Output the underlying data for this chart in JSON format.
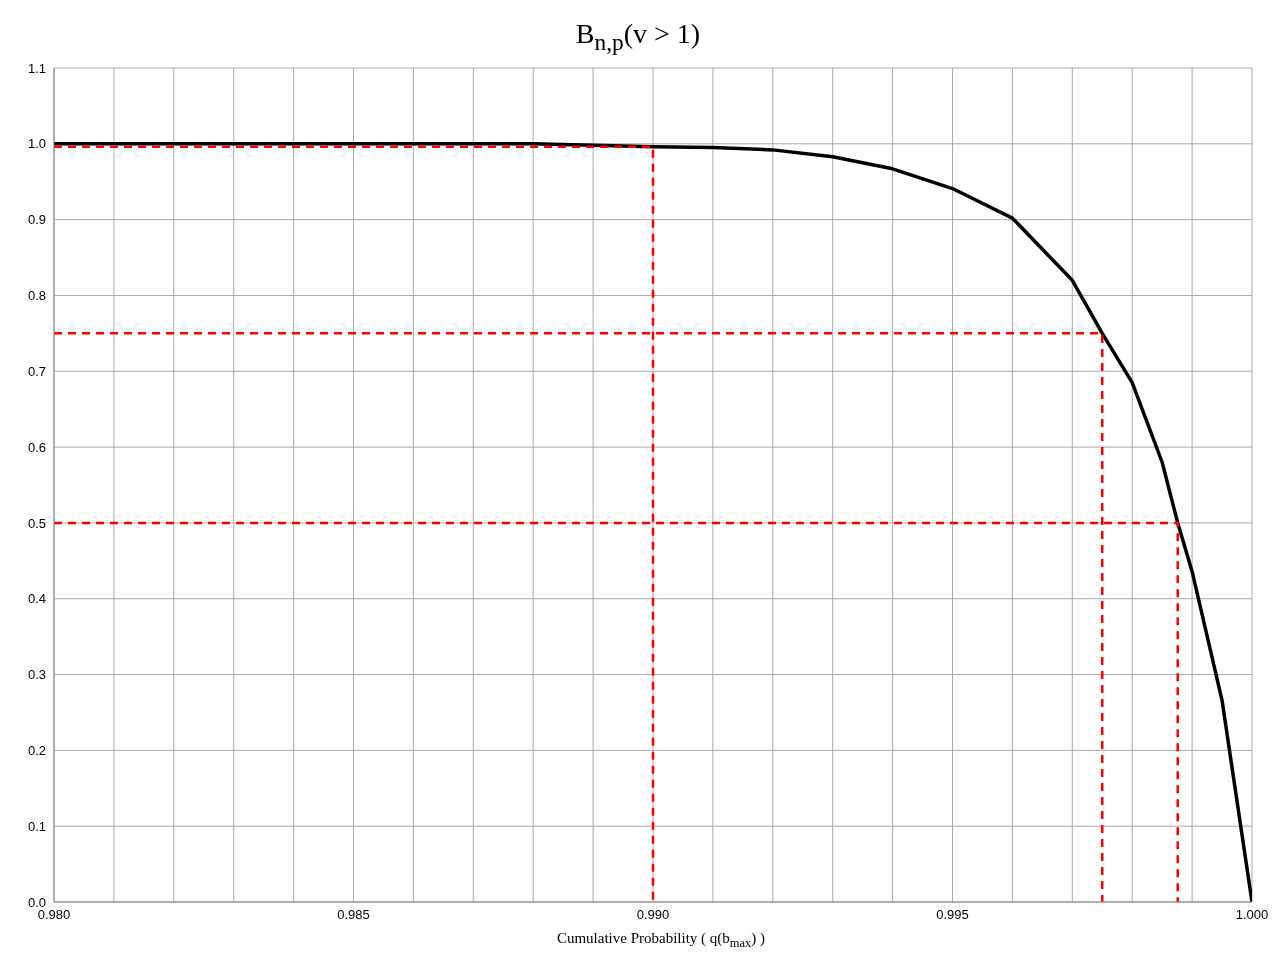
{
  "chart_data": {
    "type": "line",
    "title": "B$_{n,p}$(v > 1)",
    "xlabel": "Cumulative Probability ( q(b$_{max}$) )",
    "xlim": [
      0.98,
      1.0
    ],
    "xticks": [
      {
        "value": 0.98,
        "label": "0.980"
      },
      {
        "value": 0.981,
        "label": null
      },
      {
        "value": 0.982,
        "label": null
      },
      {
        "value": 0.983,
        "label": null
      },
      {
        "value": 0.984,
        "label": null
      },
      {
        "value": 0.985,
        "label": "0.985"
      },
      {
        "value": 0.986,
        "label": null
      },
      {
        "value": 0.987,
        "label": null
      },
      {
        "value": 0.988,
        "label": null
      },
      {
        "value": 0.989,
        "label": null
      },
      {
        "value": 0.99,
        "label": "0.990"
      },
      {
        "value": 0.991,
        "label": null
      },
      {
        "value": 0.992,
        "label": null
      },
      {
        "value": 0.993,
        "label": null
      },
      {
        "value": 0.994,
        "label": null
      },
      {
        "value": 0.995,
        "label": "0.995"
      },
      {
        "value": 0.996,
        "label": null
      },
      {
        "value": 0.997,
        "label": null
      },
      {
        "value": 0.998,
        "label": null
      },
      {
        "value": 0.999,
        "label": null
      },
      {
        "value": 1.0,
        "label": "1.000"
      }
    ],
    "ylim": [
      0,
      1.1
    ],
    "yticks": [
      {
        "value": 0,
        "label": "0.0"
      },
      {
        "value": 0.1,
        "label": "0.1"
      },
      {
        "value": 0.2,
        "label": "0.2"
      },
      {
        "value": 0.3,
        "label": "0.3"
      },
      {
        "value": 0.4,
        "label": "0.4"
      },
      {
        "value": 0.5,
        "label": "0.5"
      },
      {
        "value": 0.6,
        "label": "0.6"
      },
      {
        "value": 0.7,
        "label": "0.7"
      },
      {
        "value": 0.8,
        "label": "0.8"
      },
      {
        "value": 0.9,
        "label": "0.9"
      },
      {
        "value": 1.0,
        "label": "1.0"
      },
      {
        "value": 1.1,
        "label": "1.1"
      }
    ],
    "grid": true,
    "marker": "none",
    "series": [
      {
        "color": "#000000",
        "line_style": "solid",
        "x": [
          0.98,
          0.985,
          0.988,
          0.99,
          0.991,
          0.992,
          0.993,
          0.994,
          0.995,
          0.996,
          0.997,
          0.9975,
          0.998,
          0.9985,
          0.99876,
          0.999,
          0.9995,
          1.0
        ],
        "values": [
          1.0,
          1.0,
          1.0,
          0.996,
          0.995,
          0.992,
          0.983,
          0.967,
          0.941,
          0.902,
          0.82,
          0.75,
          0.685,
          0.58,
          0.5,
          0.436,
          0.266,
          0
        ]
      },
      {
        "color": "#ff0000",
        "line_style": "dashed",
        "x": [
          0.98,
          0.99,
          0.99
        ],
        "values": [
          0.996,
          0.996,
          0
        ]
      },
      {
        "color": "#ff0000",
        "line_style": "dashed",
        "x": [
          0.98,
          0.9975,
          0.9975
        ],
        "values": [
          0.75,
          0.75,
          0
        ]
      },
      {
        "color": "#ff0000",
        "line_style": "dashed",
        "x": [
          0.98,
          0.99876,
          0.99876
        ],
        "values": [
          0.5,
          0.5,
          0
        ]
      }
    ]
  }
}
